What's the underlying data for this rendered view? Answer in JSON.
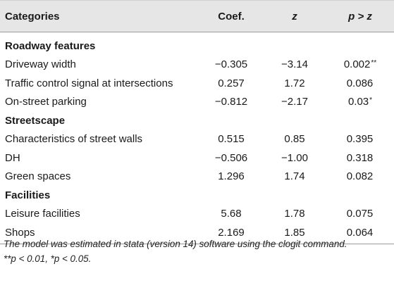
{
  "table": {
    "headers": {
      "category": "Categories",
      "coef": "Coef.",
      "z": "z",
      "p": "p > z"
    },
    "rows": [
      {
        "type": "section",
        "category": "Roadway features"
      },
      {
        "type": "data",
        "category": "Driveway width",
        "coef": "−0.305",
        "z": "−3.14",
        "p": "0.002",
        "sig": "**"
      },
      {
        "type": "data",
        "category": "Traffic control signal at intersections",
        "coef": "0.257",
        "z": "1.72",
        "p": "0.086",
        "sig": ""
      },
      {
        "type": "data",
        "category": "On-street parking",
        "coef": "−0.812",
        "z": "−2.17",
        "p": "0.03",
        "sig": "*"
      },
      {
        "type": "section",
        "category": "Streetscape"
      },
      {
        "type": "data",
        "category": "Characteristics of street walls",
        "coef": "0.515",
        "z": "0.85",
        "p": "0.395",
        "sig": ""
      },
      {
        "type": "data",
        "category": "DH",
        "coef": "−0.506",
        "z": "−1.00",
        "p": "0.318",
        "sig": ""
      },
      {
        "type": "data",
        "category": "Green spaces",
        "coef": "1.296",
        "z": "1.74",
        "p": "0.082",
        "sig": ""
      },
      {
        "type": "section",
        "category": "Facilities"
      },
      {
        "type": "data",
        "category": "Leisure facilities",
        "coef": "5.68",
        "z": "1.78",
        "p": "0.075",
        "sig": ""
      },
      {
        "type": "data",
        "category": "Shops",
        "coef": "2.169",
        "z": "1.85",
        "p": "0.064",
        "sig": ""
      }
    ]
  },
  "notes": {
    "line1": "The model was estimated in stata (version 14) software using the clogit command.",
    "line2": "**p < 0.01, *p < 0.05."
  },
  "colors": {
    "header_background": "#e6e6e6",
    "rule": "#9a9a9a",
    "text": "#1a1a1a"
  }
}
